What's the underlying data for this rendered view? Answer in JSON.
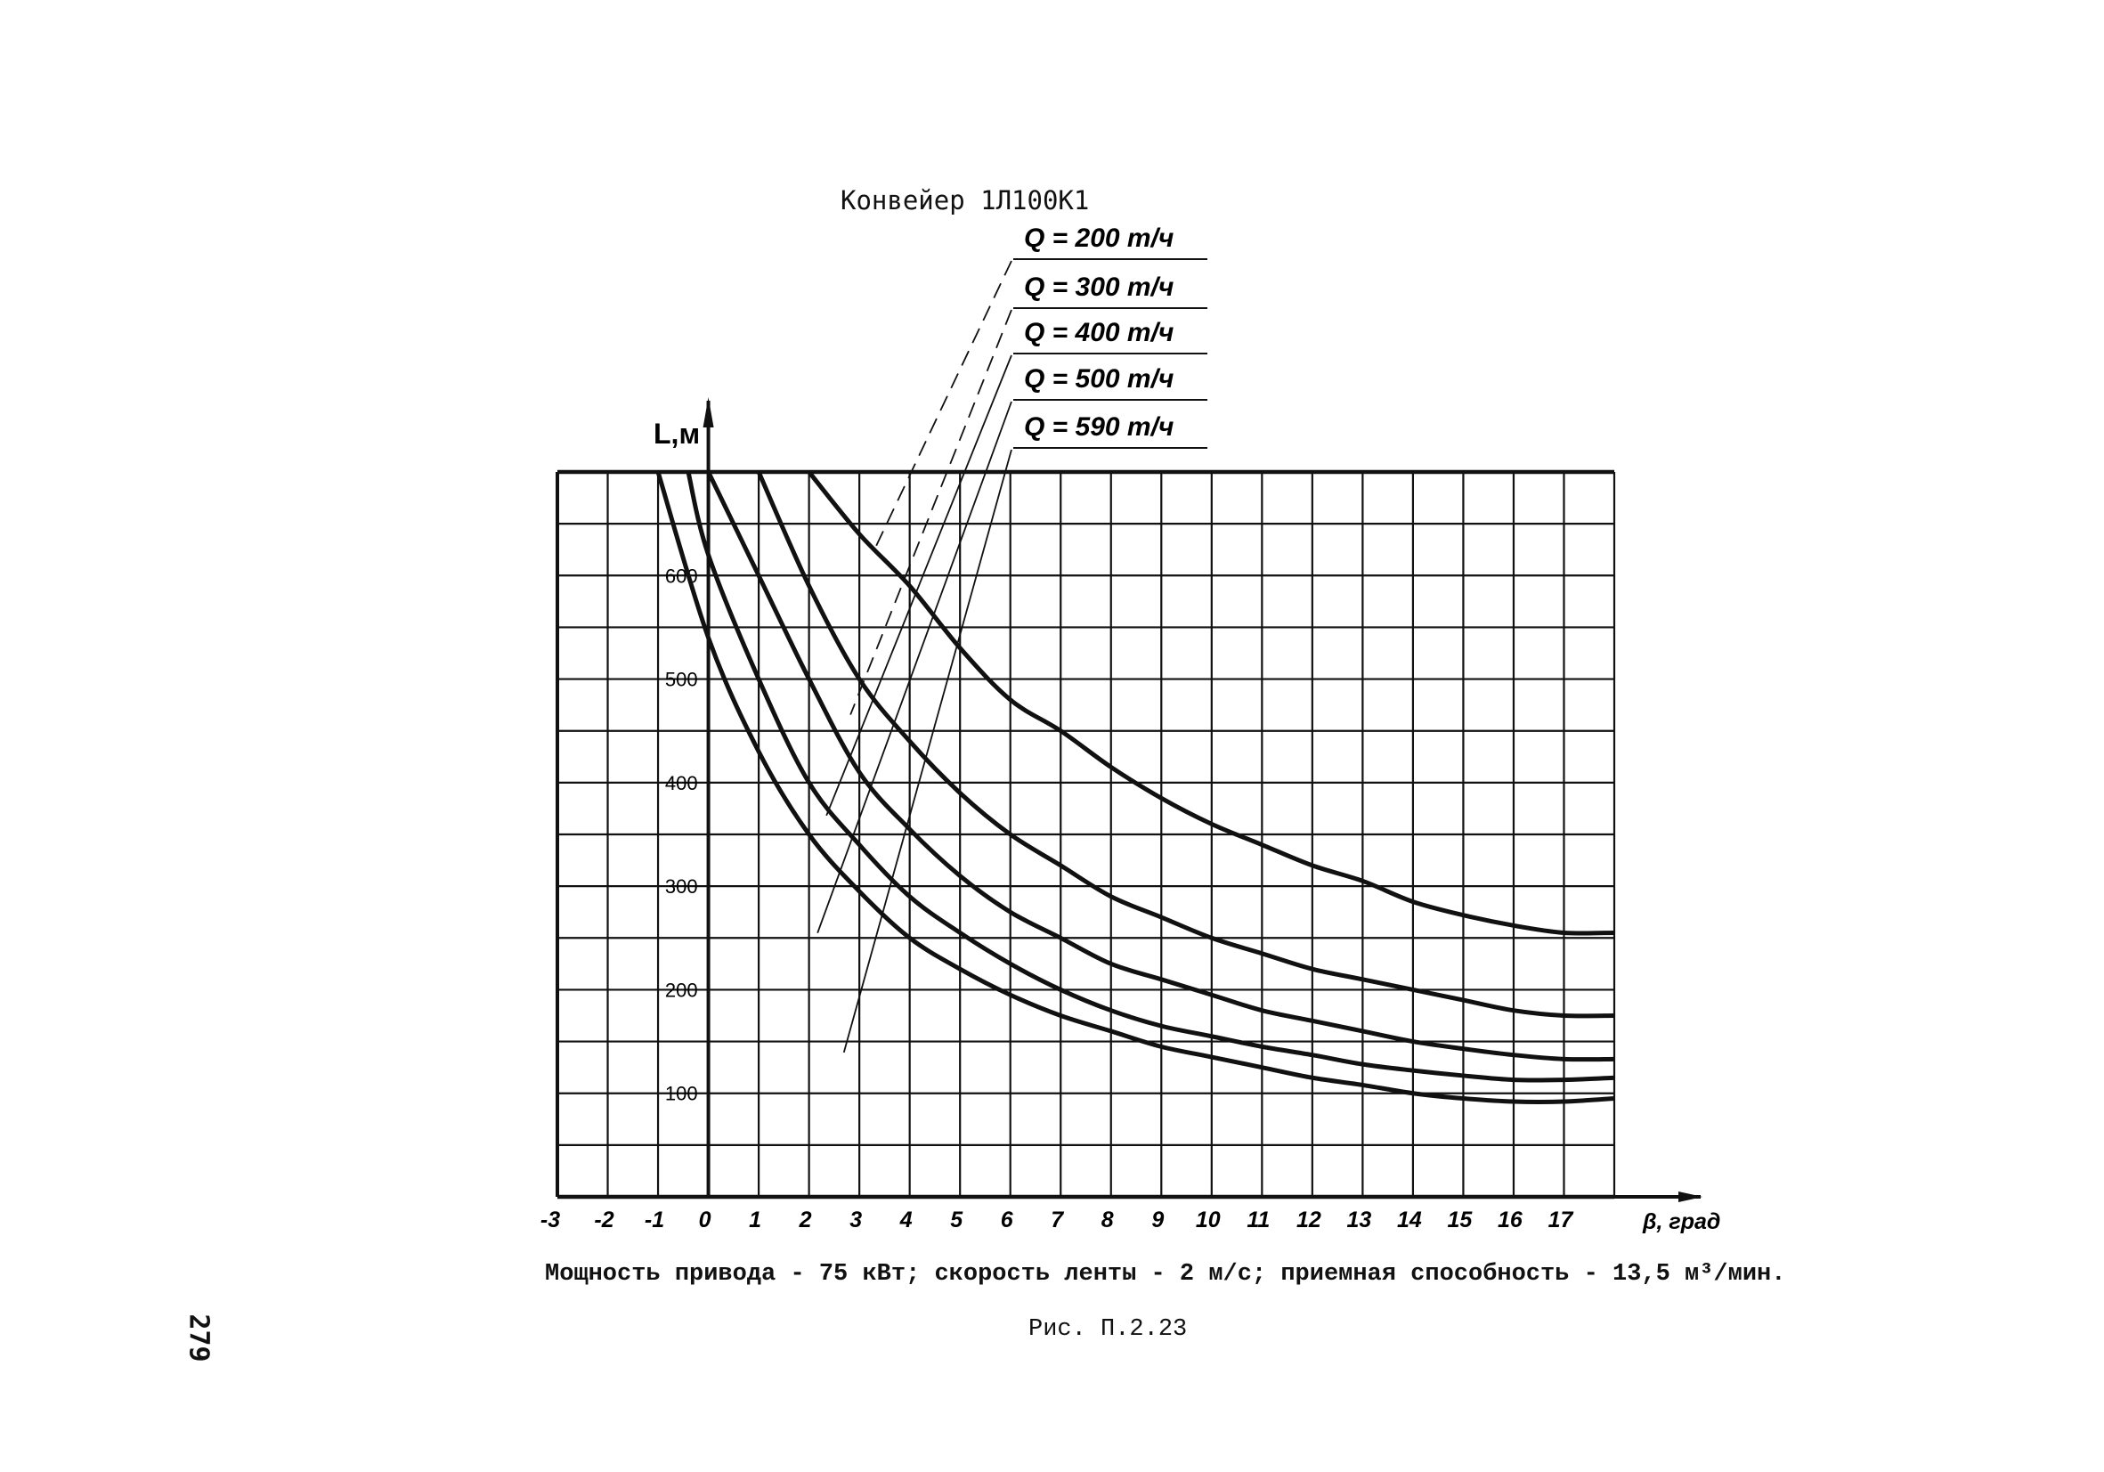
{
  "chart_data": {
    "type": "line",
    "title": "Конвейер 1Л100К1",
    "xlabel": "β, град",
    "ylabel": "L,м",
    "xlim": [
      -3,
      18
    ],
    "ylim": [
      0,
      700
    ],
    "grid": true,
    "x_ticks": [
      "-3",
      "-2",
      "-1",
      "0",
      "1",
      "2",
      "3",
      "4",
      "5",
      "6",
      "7",
      "8",
      "9",
      "10",
      "11",
      "12",
      "13",
      "14",
      "15",
      "16",
      "17"
    ],
    "y_ticks": [
      "100",
      "200",
      "300",
      "400",
      "500",
      "600"
    ],
    "series": [
      {
        "name": "Q = 200 т/ч",
        "x": [
          2,
          3,
          4,
          5,
          6,
          7,
          8,
          9,
          10,
          11,
          12,
          13,
          14,
          15,
          16,
          17,
          18
        ],
        "values": [
          700,
          640,
          590,
          530,
          480,
          450,
          415,
          385,
          360,
          340,
          320,
          305,
          285,
          272,
          262,
          255,
          255
        ]
      },
      {
        "name": "Q = 300 т/ч",
        "x": [
          1,
          2,
          3,
          4,
          5,
          6,
          7,
          8,
          9,
          10,
          11,
          12,
          13,
          14,
          15,
          16,
          17,
          18
        ],
        "values": [
          700,
          590,
          500,
          440,
          390,
          350,
          320,
          290,
          270,
          250,
          235,
          220,
          210,
          200,
          190,
          180,
          175,
          175
        ]
      },
      {
        "name": "Q = 400 т/ч",
        "x": [
          0,
          1,
          2,
          3,
          4,
          5,
          6,
          7,
          8,
          9,
          10,
          11,
          12,
          13,
          14,
          15,
          16,
          17,
          18
        ],
        "values": [
          700,
          600,
          500,
          410,
          355,
          310,
          275,
          250,
          225,
          210,
          195,
          180,
          170,
          160,
          150,
          143,
          137,
          133,
          133
        ]
      },
      {
        "name": "Q = 500 т/ч",
        "x": [
          -0.4,
          0,
          1,
          2,
          3,
          4,
          5,
          6,
          7,
          8,
          9,
          10,
          11,
          12,
          13,
          14,
          15,
          16,
          17,
          18
        ],
        "values": [
          700,
          620,
          500,
          400,
          340,
          290,
          255,
          225,
          200,
          180,
          165,
          155,
          145,
          137,
          128,
          122,
          117,
          113,
          113,
          115
        ]
      },
      {
        "name": "Q = 590 т/ч",
        "x": [
          -1,
          0,
          1,
          2,
          3,
          4,
          5,
          6,
          7,
          8,
          9,
          10,
          11,
          12,
          13,
          14,
          15,
          16,
          17,
          18
        ],
        "values": [
          700,
          540,
          430,
          350,
          295,
          250,
          220,
          195,
          175,
          160,
          145,
          135,
          125,
          115,
          108,
          100,
          95,
          92,
          92,
          95
        ]
      }
    ]
  },
  "caption": "Мощность привода - 75 кВт; скорость ленты - 2 м/с; приемная способность - 13,5 м³/мин.",
  "figure_label": "Рис. П.2.23",
  "page_number": "279"
}
